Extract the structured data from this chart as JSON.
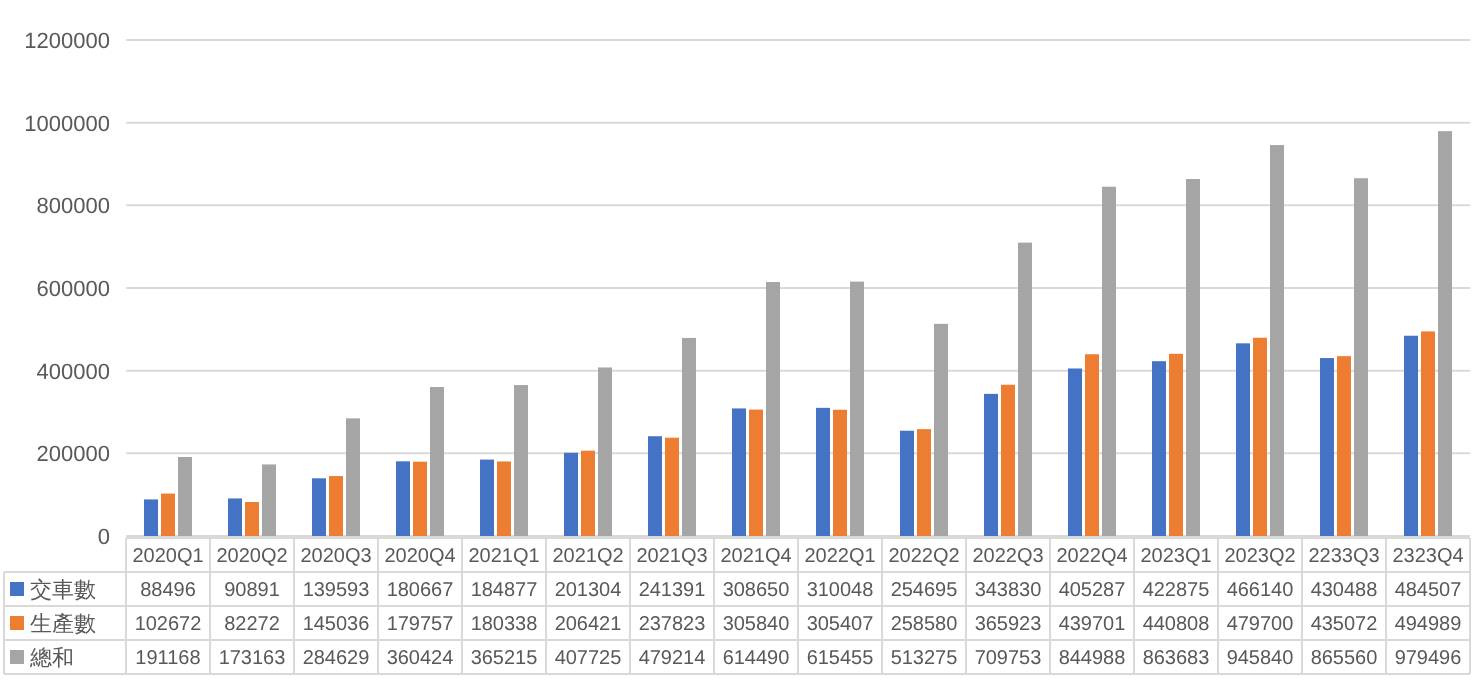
{
  "chart_data": {
    "type": "bar",
    "categories": [
      "2020Q1",
      "2020Q2",
      "2020Q3",
      "2020Q4",
      "2021Q1",
      "2021Q2",
      "2021Q3",
      "2021Q4",
      "2022Q1",
      "2022Q2",
      "2022Q3",
      "2022Q4",
      "2023Q1",
      "2023Q2",
      "2233Q3",
      "2323Q4"
    ],
    "series": [
      {
        "name": "交車數",
        "color": "#4472c4",
        "values": [
          88496,
          90891,
          139593,
          180667,
          184877,
          201304,
          241391,
          308650,
          310048,
          254695,
          343830,
          405287,
          422875,
          466140,
          430488,
          484507
        ]
      },
      {
        "name": "生產數",
        "color": "#ed7d31",
        "values": [
          102672,
          82272,
          145036,
          179757,
          180338,
          206421,
          237823,
          305840,
          305407,
          258580,
          365923,
          439701,
          440808,
          479700,
          435072,
          494989
        ]
      },
      {
        "name": "總和",
        "color": "#a5a5a5",
        "values": [
          191168,
          173163,
          284629,
          360424,
          365215,
          407725,
          479214,
          614490,
          615455,
          513275,
          709753,
          844988,
          863683,
          945840,
          865560,
          979496
        ]
      }
    ],
    "ylim": [
      0,
      1200000
    ],
    "yticks": [
      0,
      200000,
      400000,
      600000,
      800000,
      1000000,
      1200000
    ],
    "grid": "y",
    "legend": "bottom",
    "data_labels": true
  }
}
